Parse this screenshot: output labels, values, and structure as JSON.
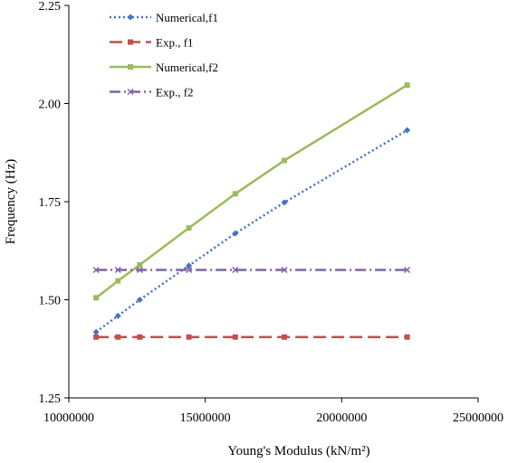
{
  "chart_data": {
    "type": "line",
    "xlabel": "Young's Modulus (kN/m²)",
    "ylabel": "Frequency (Hz)",
    "xlim": [
      10000000,
      25000000
    ],
    "ylim": [
      1.25,
      2.25
    ],
    "x_ticks": [
      "10000000",
      "15000000",
      "20000000",
      "25000000"
    ],
    "y_ticks": [
      "1.25",
      "1.50",
      "1.75",
      "2.00",
      "2.25"
    ],
    "x": [
      11000000,
      11800000,
      12600000,
      14400000,
      16100000,
      17900000,
      22400000
    ],
    "legend_position": "top-left",
    "grid": false,
    "series": [
      {
        "name": "Numerical,f1",
        "values": [
          1.418,
          1.459,
          1.5,
          1.587,
          1.669,
          1.748,
          1.932
        ],
        "color": "#4472C4",
        "dash": "2,3",
        "marker": "diamond"
      },
      {
        "name": "Exp., f1",
        "values": [
          1.405,
          1.405,
          1.405,
          1.405,
          1.405,
          1.405,
          1.405
        ],
        "color": "#C0504D",
        "dash": "14,6",
        "marker": "square"
      },
      {
        "name": "Numerical,f2",
        "values": [
          1.505,
          1.548,
          1.589,
          1.683,
          1.77,
          1.855,
          2.047
        ],
        "color": "#9BBB59",
        "dash": "",
        "marker": "square"
      },
      {
        "name": "Exp., f2",
        "values": [
          1.576,
          1.576,
          1.576,
          1.576,
          1.576,
          1.576,
          1.576
        ],
        "color": "#8064A2",
        "dash": "12,4,2,4",
        "marker": "cross"
      }
    ]
  }
}
